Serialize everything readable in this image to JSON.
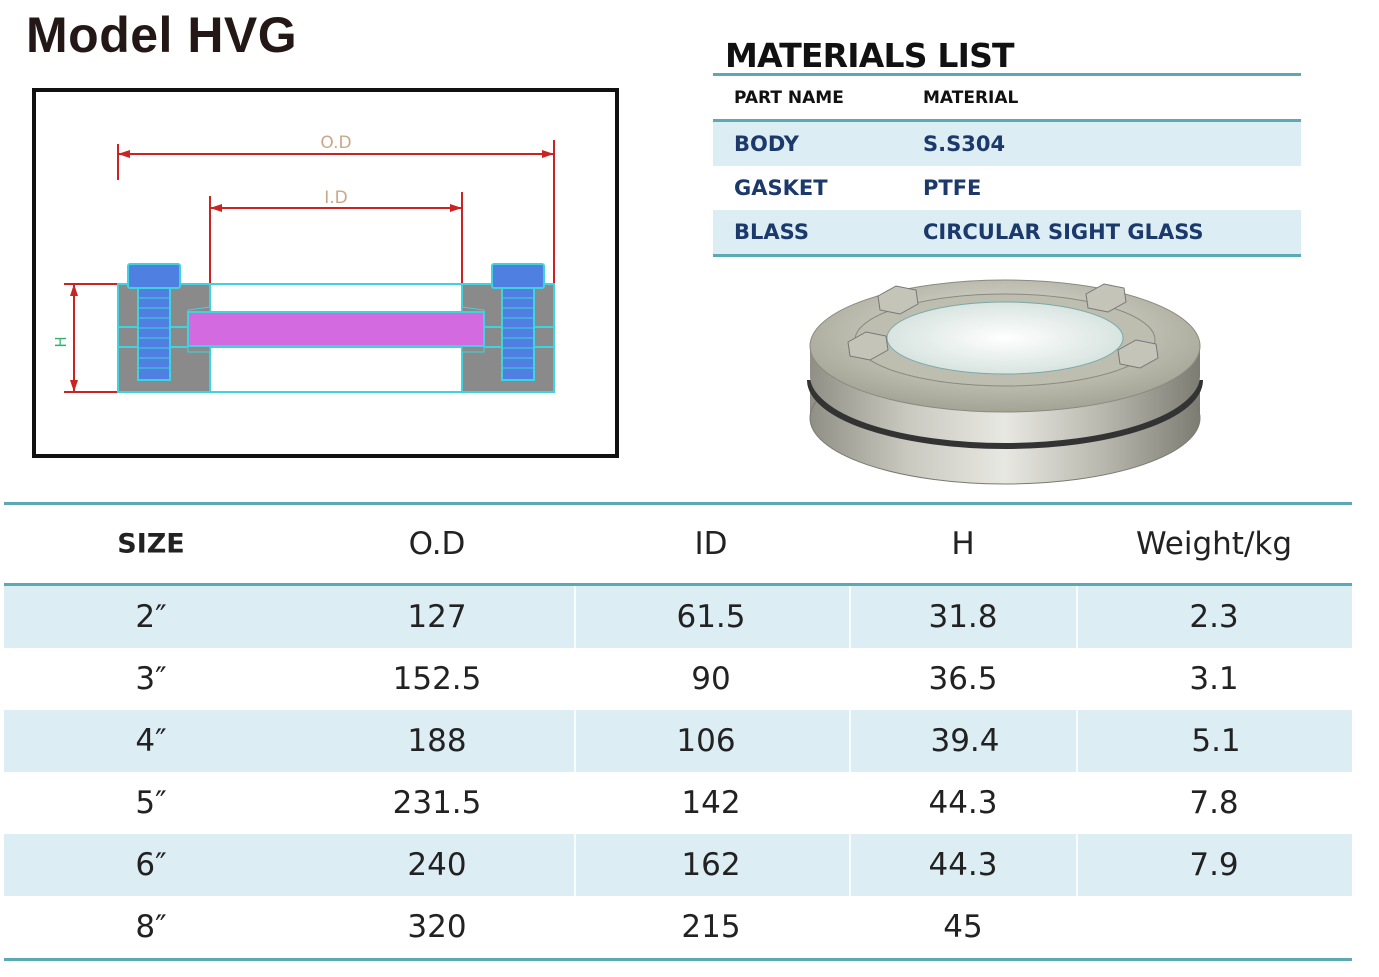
{
  "title": "Model HVG",
  "drawing": {
    "od_label": "O.D",
    "id_label": "I.D",
    "h_label": "H"
  },
  "materials": {
    "title": "MATERIALS LIST",
    "headers": [
      "PART NAME",
      "MATERIAL"
    ],
    "rows": [
      {
        "part": "BODY",
        "material": "S.S304"
      },
      {
        "part": "GASKET",
        "material": "PTFE"
      },
      {
        "part": "BLASS",
        "material": "CIRCULAR SIGHT GLASS"
      }
    ]
  },
  "spec": {
    "headers": [
      "SIZE",
      "O.D",
      "ID",
      "H",
      "Weight/kg"
    ],
    "rows": [
      [
        "2″",
        "127",
        "61.5",
        "31.8",
        "2.3"
      ],
      [
        "3″",
        "152.5",
        "90",
        "36.5",
        "3.1"
      ],
      [
        "4″",
        "188",
        "106",
        "39.4",
        "5.1"
      ],
      [
        "5″",
        "231.5",
        "142",
        "44.3",
        "7.8"
      ],
      [
        "6″",
        "240",
        "162",
        "44.3",
        "7.9"
      ],
      [
        "8″",
        "320",
        "215",
        "45",
        ""
      ]
    ]
  },
  "colors": {
    "accent_rule": "#5aa9b5",
    "row_shade": "#dcedf3",
    "materials_text": "#1b3a6b",
    "dimension_red": "#cc2222",
    "bolt_blue": "#4f7fe0",
    "bolt_cyan": "#3fd3e0",
    "glass_magenta": "#d46ae0"
  }
}
